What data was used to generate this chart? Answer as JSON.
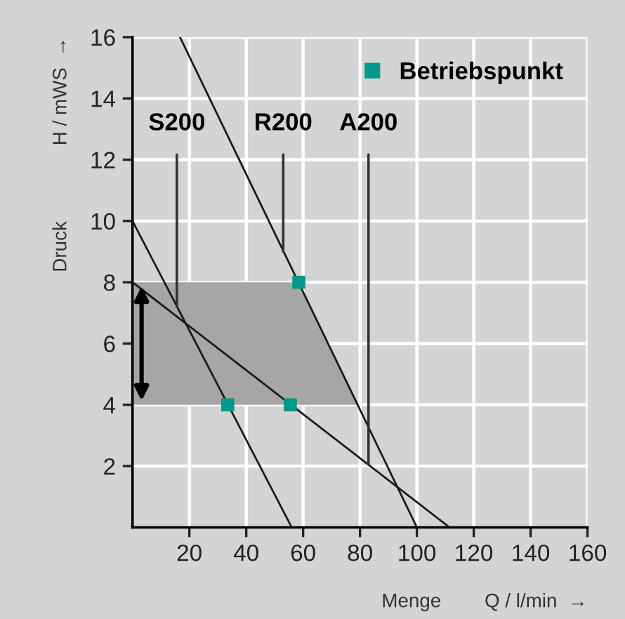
{
  "chart_data": {
    "type": "line",
    "xlabel": "Menge        Q / l/min  →",
    "ylabel": "Druck              H / mWS  →",
    "series": [
      {
        "type": "area",
        "color": "#a6a6a6",
        "x": [
          0,
          58.3,
          79.2,
          0
        ],
        "values": [
          8,
          8,
          4,
          4
        ]
      },
      {
        "color": "#1a1a1a",
        "x": [
          0,
          56
        ],
        "values": [
          10,
          0
        ]
      },
      {
        "color": "#1a1a1a",
        "x": [
          0,
          111.5
        ],
        "values": [
          8,
          0
        ]
      },
      {
        "color": "#1a1a1a",
        "x": [
          16.7,
          100
        ],
        "values": [
          16,
          0
        ]
      },
      {
        "type": "scatter",
        "marker": "square",
        "name": "Betriebspunkt",
        "color": "#009a8a",
        "x": [
          33.5,
          55.5,
          58.5
        ],
        "values": [
          4,
          4,
          8
        ]
      }
    ],
    "annotations": [
      {
        "text": "S200",
        "x": 15.6,
        "y": 7.2
      },
      {
        "text": "R200",
        "x": 53,
        "y": 9.0
      },
      {
        "text": "A200",
        "x": 83,
        "y": 2.05
      }
    ],
    "xlim": [
      0,
      160
    ],
    "ylim": [
      0,
      16
    ],
    "xticks": [
      20,
      40,
      60,
      80,
      100,
      120,
      140,
      160
    ],
    "yticks": [
      2,
      4,
      6,
      8,
      10,
      12,
      14,
      16
    ],
    "grid": true,
    "legend": "top right"
  }
}
